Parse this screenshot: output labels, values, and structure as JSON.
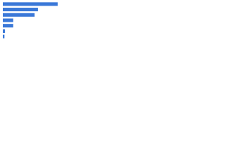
{
  "chart_data": {
    "type": "barh",
    "categories": [
      null,
      null,
      null,
      null,
      null,
      null,
      null
    ],
    "values": [
      100,
      64,
      58,
      19,
      19,
      4,
      3
    ],
    "color": "#3a78d8",
    "xlim": [
      0,
      100
    ]
  }
}
